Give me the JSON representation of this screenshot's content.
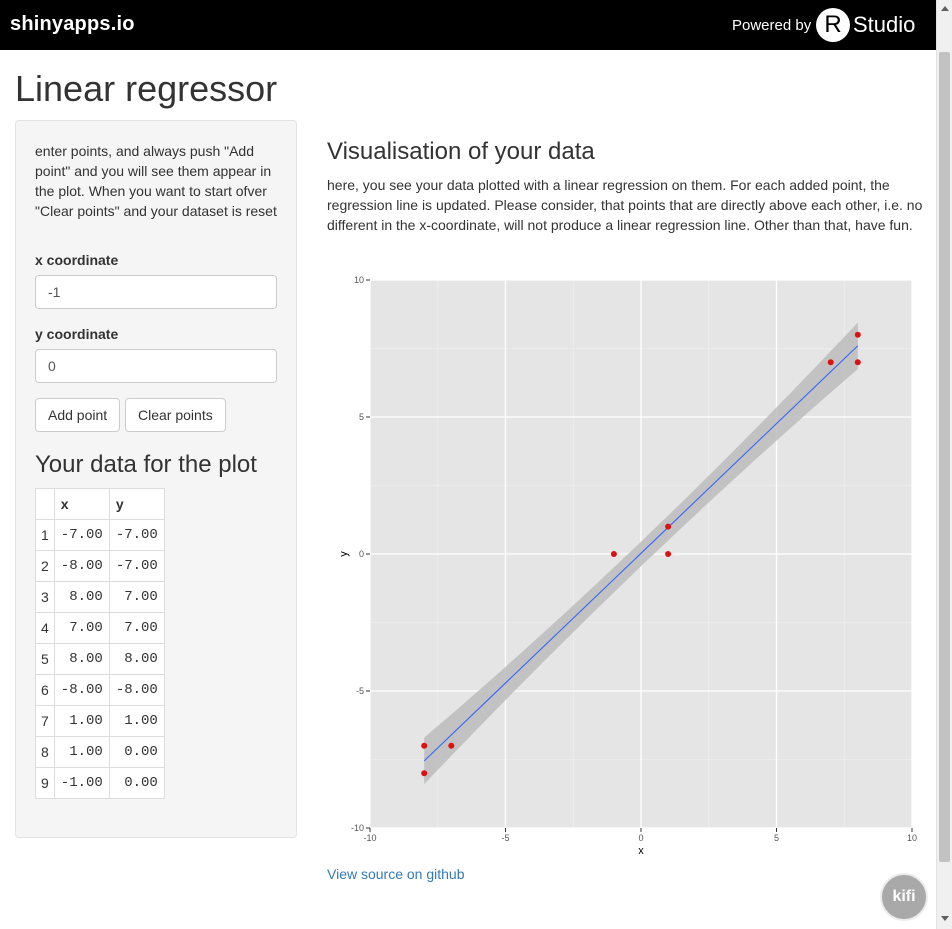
{
  "header": {
    "brand": "shinyapps.io",
    "powered_by": "Powered by",
    "rstudio_r": "R",
    "rstudio_text": "Studio"
  },
  "page_title": "Linear regressor",
  "sidebar": {
    "intro": "enter points, and always push \"Add point\" and you will see them appear in the plot. When you want to start ofver \"Clear points\" and your dataset is reset",
    "x_label": "x coordinate",
    "x_value": "-1",
    "y_label": "y coordinate",
    "y_value": "0",
    "add_button": "Add point",
    "clear_button": "Clear points",
    "table_title": "Your data for the plot",
    "table": {
      "headers": [
        "",
        "x",
        "y"
      ],
      "rows": [
        [
          "1",
          "-7.00",
          "-7.00"
        ],
        [
          "2",
          "-8.00",
          "-7.00"
        ],
        [
          "3",
          "8.00",
          "7.00"
        ],
        [
          "4",
          "7.00",
          "7.00"
        ],
        [
          "5",
          "8.00",
          "8.00"
        ],
        [
          "6",
          "-8.00",
          "-8.00"
        ],
        [
          "7",
          "1.00",
          "1.00"
        ],
        [
          "8",
          "1.00",
          "0.00"
        ],
        [
          "9",
          "-1.00",
          "0.00"
        ]
      ]
    }
  },
  "main": {
    "title": "Visualisation of your data",
    "description": "here, you see your data plotted with a linear regression on them. For each added point, the regression line is updated. Please consider, that points that are directly above each other, i.e. no different in the x-coordinate, will not produce a linear regression line. Other than that, have fun.",
    "source_link": "View source on github"
  },
  "kifi_label": "kifi",
  "chart_data": {
    "type": "scatter",
    "title": "",
    "xlabel": "x",
    "ylabel": "y",
    "xlim": [
      -10,
      10
    ],
    "ylim": [
      -10,
      10
    ],
    "x_ticks": [
      -10,
      -5,
      0,
      5,
      10
    ],
    "y_ticks": [
      -10,
      -5,
      0,
      5,
      10
    ],
    "grid": true,
    "points": [
      {
        "x": -7,
        "y": -7
      },
      {
        "x": -8,
        "y": -7
      },
      {
        "x": 8,
        "y": 7
      },
      {
        "x": 7,
        "y": 7
      },
      {
        "x": 8,
        "y": 8
      },
      {
        "x": -8,
        "y": -8
      },
      {
        "x": 1,
        "y": 1
      },
      {
        "x": 1,
        "y": 0
      },
      {
        "x": -1,
        "y": 0
      }
    ],
    "regression_line": {
      "x0": -8,
      "y0": -7.55,
      "x1": 8,
      "y1": 7.6
    },
    "confidence_band": [
      {
        "x": -8,
        "lo": -8.4,
        "hi": -6.7
      },
      {
        "x": 0,
        "lo": -0.45,
        "hi": 0.45
      },
      {
        "x": 8,
        "lo": 6.75,
        "hi": 8.45
      }
    ],
    "colors": {
      "panel": "#e5e5e5",
      "point": "#dd1111",
      "line": "#3366ff",
      "band": "#bcbcbc"
    }
  }
}
